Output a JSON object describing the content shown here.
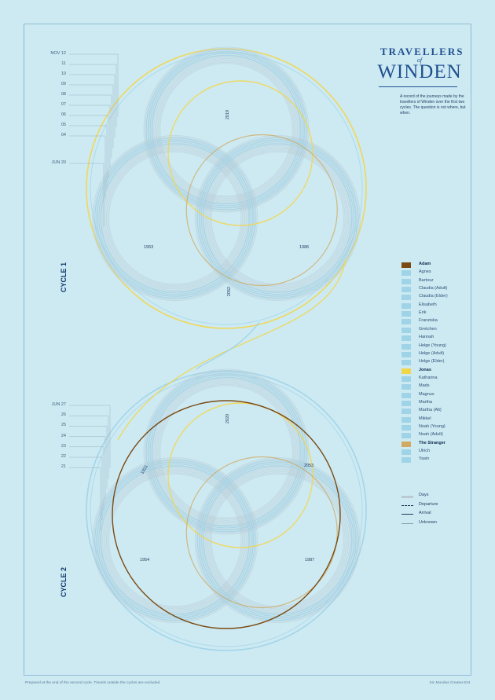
{
  "title": {
    "line1": "TRAVELLERS",
    "line2": "of",
    "line3": "WINDEN",
    "intro": "A record of the journeys made by the travellers of Winden over the first two cycles. The question is not where, but when."
  },
  "cycles": [
    {
      "label": "CYCLE 1",
      "ticks": [
        "NOV 12",
        "11",
        "10",
        "09",
        "08",
        "07",
        "06",
        "05",
        "04",
        "JUN 20"
      ],
      "years": [
        "2019",
        "1953",
        "1986",
        "2052"
      ]
    },
    {
      "label": "CYCLE 2",
      "ticks": [
        "JUN 27",
        "26",
        "25",
        "24",
        "23",
        "22",
        "21"
      ],
      "years": [
        "2020",
        "1921",
        "2053",
        "1954",
        "1987"
      ]
    }
  ],
  "legend": [
    {
      "name": "Adam",
      "color": "#7a4a12",
      "bold": true
    },
    {
      "name": "Agnes",
      "color": "#9fd3e8",
      "bold": false
    },
    {
      "name": "Bartosz",
      "color": "#9fd3e8",
      "bold": false
    },
    {
      "name": "Claudia (Adult)",
      "color": "#9fd3e8",
      "bold": false
    },
    {
      "name": "Claudia (Elder)",
      "color": "#9fd3e8",
      "bold": false
    },
    {
      "name": "Elisabeth",
      "color": "#9fd3e8",
      "bold": false
    },
    {
      "name": "Erik",
      "color": "#9fd3e8",
      "bold": false
    },
    {
      "name": "Franziska",
      "color": "#9fd3e8",
      "bold": false
    },
    {
      "name": "Gretchen",
      "color": "#9fd3e8",
      "bold": false
    },
    {
      "name": "Hannah",
      "color": "#9fd3e8",
      "bold": false
    },
    {
      "name": "Helge (Young)",
      "color": "#9fd3e8",
      "bold": false
    },
    {
      "name": "Helge (Adult)",
      "color": "#9fd3e8",
      "bold": false
    },
    {
      "name": "Helge (Elder)",
      "color": "#9fd3e8",
      "bold": false
    },
    {
      "name": "Jonas",
      "color": "#f2d64a",
      "bold": true
    },
    {
      "name": "Katharina",
      "color": "#9fd3e8",
      "bold": false
    },
    {
      "name": "Mads",
      "color": "#9fd3e8",
      "bold": false
    },
    {
      "name": "Magnus",
      "color": "#9fd3e8",
      "bold": false
    },
    {
      "name": "Martha",
      "color": "#9fd3e8",
      "bold": false
    },
    {
      "name": "Martha (Alt)",
      "color": "#9fd3e8",
      "bold": false
    },
    {
      "name": "Mikkel",
      "color": "#9fd3e8",
      "bold": false
    },
    {
      "name": "Noah (Young)",
      "color": "#9fd3e8",
      "bold": false
    },
    {
      "name": "Noah (Adult)",
      "color": "#9fd3e8",
      "bold": false
    },
    {
      "name": "The Stranger",
      "color": "#d0aa62",
      "bold": true
    },
    {
      "name": "Ulrich",
      "color": "#9fd3e8",
      "bold": false
    },
    {
      "name": "Yasin",
      "color": "#9fd3e8",
      "bold": false
    }
  ],
  "line_key": [
    {
      "name": "Days",
      "style": "days"
    },
    {
      "name": "Departure",
      "style": "departure"
    },
    {
      "name": "Arrival",
      "style": "arrival"
    },
    {
      "name": "Unknown",
      "style": "unknown"
    }
  ],
  "footer": {
    "left": "Prepared at the end of the second cycle. Travels outside the cycles are excluded.",
    "right": "Sic Mundus Creatus Est"
  },
  "colors": {
    "background": "#cdeaf3",
    "ink": "#123b6e",
    "days": "#b9cad3",
    "track": "#9fd3e8",
    "jonas": "#f2d64a",
    "adam": "#7a4a12",
    "stranger": "#d0aa62"
  }
}
